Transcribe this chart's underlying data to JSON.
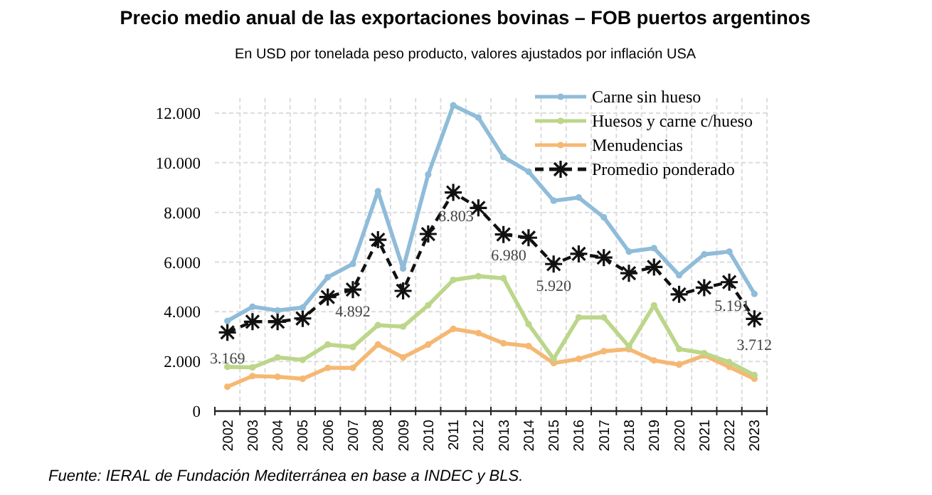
{
  "chart_data": {
    "type": "line",
    "title": "Precio medio anual de las exportaciones bovinas – FOB puertos argentinos",
    "subtitle": "En USD por tonelada peso producto, valores ajustados por inflación USA",
    "annotations": [
      "Fuente: IERAL de Fundación Mediterránea en base a INDEC y BLS."
    ],
    "categories": [
      "2002",
      "2003",
      "2004",
      "2005",
      "2006",
      "2007",
      "2008",
      "2009",
      "2010",
      "2011",
      "2012",
      "2013",
      "2014",
      "2015",
      "2016",
      "2017",
      "2018",
      "2019",
      "2020",
      "2021",
      "2022",
      "2023"
    ],
    "ylim": [
      0,
      12600
    ],
    "yticks": [
      {
        "value": 0,
        "label": "0"
      },
      {
        "value": 2000,
        "label": "2.000"
      },
      {
        "value": 4000,
        "label": "4.000"
      },
      {
        "value": 6000,
        "label": "6.000"
      },
      {
        "value": 8000,
        "label": "8.000"
      },
      {
        "value": 10000,
        "label": "10.000"
      },
      {
        "value": 12000,
        "label": "12.000"
      }
    ],
    "grid": true,
    "legend": "top right",
    "series": [
      {
        "name": "Carne sin hueso",
        "color": "#8fbcd9",
        "marker": "circle",
        "line_style": "solid",
        "values": [
          3630,
          4200,
          4050,
          4170,
          5390,
          5930,
          8850,
          5740,
          9520,
          12310,
          11820,
          10230,
          9640,
          8470,
          8600,
          7800,
          6420,
          6560,
          5470,
          6310,
          6420,
          4720
        ]
      },
      {
        "name": "Huesos y carne c/hueso",
        "color": "#bcd68a",
        "marker": "circle",
        "line_style": "solid",
        "values": [
          1780,
          1760,
          2160,
          2060,
          2680,
          2580,
          3460,
          3400,
          4260,
          5280,
          5430,
          5350,
          3500,
          2100,
          3770,
          3770,
          2600,
          4260,
          2500,
          2330,
          1970,
          1450
        ]
      },
      {
        "name": "Menudencias",
        "color": "#f5b873",
        "marker": "circle",
        "line_style": "solid",
        "values": [
          980,
          1410,
          1380,
          1300,
          1740,
          1740,
          2680,
          2160,
          2680,
          3310,
          3140,
          2730,
          2620,
          1930,
          2100,
          2410,
          2490,
          2040,
          1870,
          2240,
          1780,
          1300
        ]
      },
      {
        "name": "Promedio ponderado",
        "color": "#111111",
        "marker": "cross",
        "line_style": "dashed",
        "values": [
          3169,
          3600,
          3600,
          3730,
          4590,
          4892,
          6900,
          4840,
          7130,
          8803,
          8180,
          7110,
          6980,
          5920,
          6330,
          6180,
          5550,
          5800,
          4700,
          4970,
          5191,
          3712
        ],
        "value_labels": [
          "3.169",
          null,
          null,
          null,
          null,
          "4.892",
          null,
          null,
          null,
          "8.803",
          null,
          null,
          "6.980",
          "5.920",
          null,
          null,
          null,
          null,
          null,
          null,
          "5.191",
          "3.712"
        ]
      }
    ]
  }
}
